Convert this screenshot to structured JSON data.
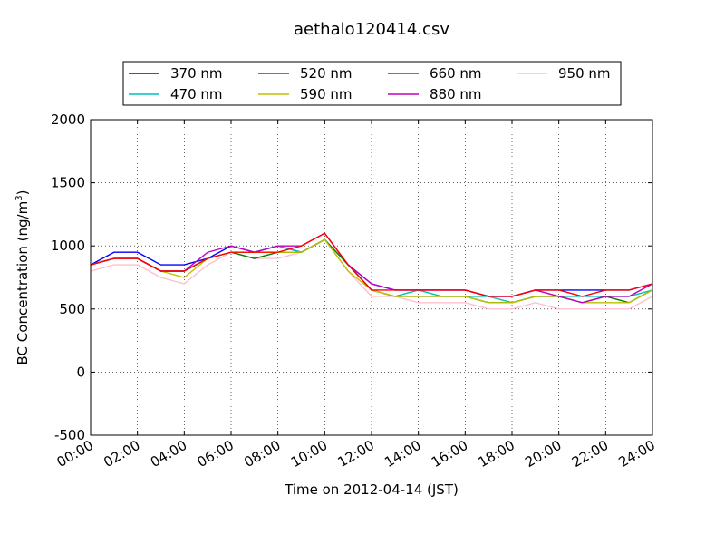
{
  "chart_data": {
    "type": "line",
    "title": "aethalo120414.csv",
    "xlabel": "Time on 2012-04-14 (JST)",
    "ylabel": "BC Concentration (ng/m",
    "ylabel_sup": "3",
    "ylabel_tail": ")",
    "xlim": [
      "2012-04-14 00:00",
      "2012-04-15 00:00"
    ],
    "ylim": [
      -500,
      2000
    ],
    "xticks": [
      "00:00",
      "02:00",
      "04:00",
      "06:00",
      "08:00",
      "10:00",
      "12:00",
      "14:00",
      "16:00",
      "18:00",
      "20:00",
      "22:00",
      "24:00"
    ],
    "yticks": [
      -500,
      0,
      500,
      1000,
      1500,
      2000
    ],
    "grid": true,
    "legend_position": "top, above plot",
    "x_hours_note": "x values are hours on 2012-04-14",
    "series": [
      {
        "name": "370 nm",
        "color": "#0000ff",
        "x": [
          0,
          1,
          2,
          3,
          4,
          5,
          6,
          7,
          8,
          9,
          10,
          11,
          12,
          13,
          14,
          15,
          16,
          17,
          18,
          19,
          20,
          21,
          22,
          23,
          24
        ],
        "y": [
          850,
          950,
          950,
          850,
          850,
          900,
          1000,
          950,
          1000,
          950,
          1050,
          850,
          700,
          650,
          650,
          650,
          650,
          600,
          600,
          650,
          650,
          650,
          650,
          650,
          700
        ]
      },
      {
        "name": "470 nm",
        "color": "#00bfbf",
        "x": [
          0,
          1,
          2,
          3,
          4,
          5,
          6,
          7,
          8,
          9,
          10,
          11,
          12,
          13,
          14,
          15,
          16,
          17,
          18,
          19,
          20,
          21,
          22,
          23,
          24
        ],
        "y": [
          850,
          900,
          900,
          800,
          800,
          900,
          950,
          950,
          1000,
          950,
          1050,
          850,
          650,
          600,
          650,
          600,
          600,
          600,
          550,
          600,
          600,
          600,
          600,
          600,
          650
        ]
      },
      {
        "name": "520 nm",
        "color": "#008000",
        "x": [
          0,
          1,
          2,
          3,
          4,
          5,
          6,
          7,
          8,
          9,
          10,
          11,
          12,
          13,
          14,
          15,
          16,
          17,
          18,
          19,
          20,
          21,
          22,
          23,
          24
        ],
        "y": [
          850,
          900,
          900,
          800,
          800,
          900,
          950,
          900,
          950,
          950,
          1050,
          850,
          650,
          600,
          600,
          600,
          600,
          550,
          550,
          600,
          600,
          550,
          600,
          550,
          650
        ]
      },
      {
        "name": "590 nm",
        "color": "#bfbf00",
        "x": [
          0,
          1,
          2,
          3,
          4,
          5,
          6,
          7,
          8,
          9,
          10,
          11,
          12,
          13,
          14,
          15,
          16,
          17,
          18,
          19,
          20,
          21,
          22,
          23,
          24
        ],
        "y": [
          850,
          900,
          900,
          800,
          750,
          900,
          950,
          950,
          950,
          950,
          1050,
          800,
          650,
          600,
          600,
          600,
          600,
          550,
          550,
          600,
          600,
          550,
          550,
          550,
          650
        ]
      },
      {
        "name": "660 nm",
        "color": "#ff0000",
        "x": [
          0,
          1,
          2,
          3,
          4,
          5,
          6,
          7,
          8,
          9,
          10,
          11,
          12,
          13,
          14,
          15,
          16,
          17,
          18,
          19,
          20,
          21,
          22,
          23,
          24
        ],
        "y": [
          850,
          900,
          900,
          800,
          800,
          900,
          950,
          950,
          950,
          1000,
          1100,
          850,
          650,
          650,
          650,
          650,
          650,
          600,
          600,
          650,
          650,
          600,
          650,
          650,
          700
        ]
      },
      {
        "name": "880 nm",
        "color": "#bf00bf",
        "x": [
          0,
          1,
          2,
          3,
          4,
          5,
          6,
          7,
          8,
          9,
          10,
          11,
          12,
          13,
          14,
          15,
          16,
          17,
          18,
          19,
          20,
          21,
          22,
          23,
          24
        ],
        "y": [
          850,
          900,
          900,
          800,
          800,
          950,
          1000,
          950,
          1000,
          1000,
          1100,
          850,
          700,
          650,
          650,
          650,
          650,
          600,
          600,
          650,
          600,
          550,
          600,
          600,
          700
        ]
      },
      {
        "name": "950 nm",
        "color": "#ffc0cb",
        "x": [
          0,
          1,
          2,
          3,
          4,
          5,
          6,
          7,
          8,
          9,
          10,
          11,
          12,
          13,
          14,
          15,
          16,
          17,
          18,
          19,
          20,
          21,
          22,
          23,
          24
        ],
        "y": [
          800,
          850,
          850,
          750,
          700,
          850,
          950,
          900,
          900,
          950,
          1050,
          800,
          600,
          600,
          550,
          550,
          550,
          500,
          500,
          550,
          500,
          500,
          500,
          500,
          600
        ]
      }
    ]
  }
}
